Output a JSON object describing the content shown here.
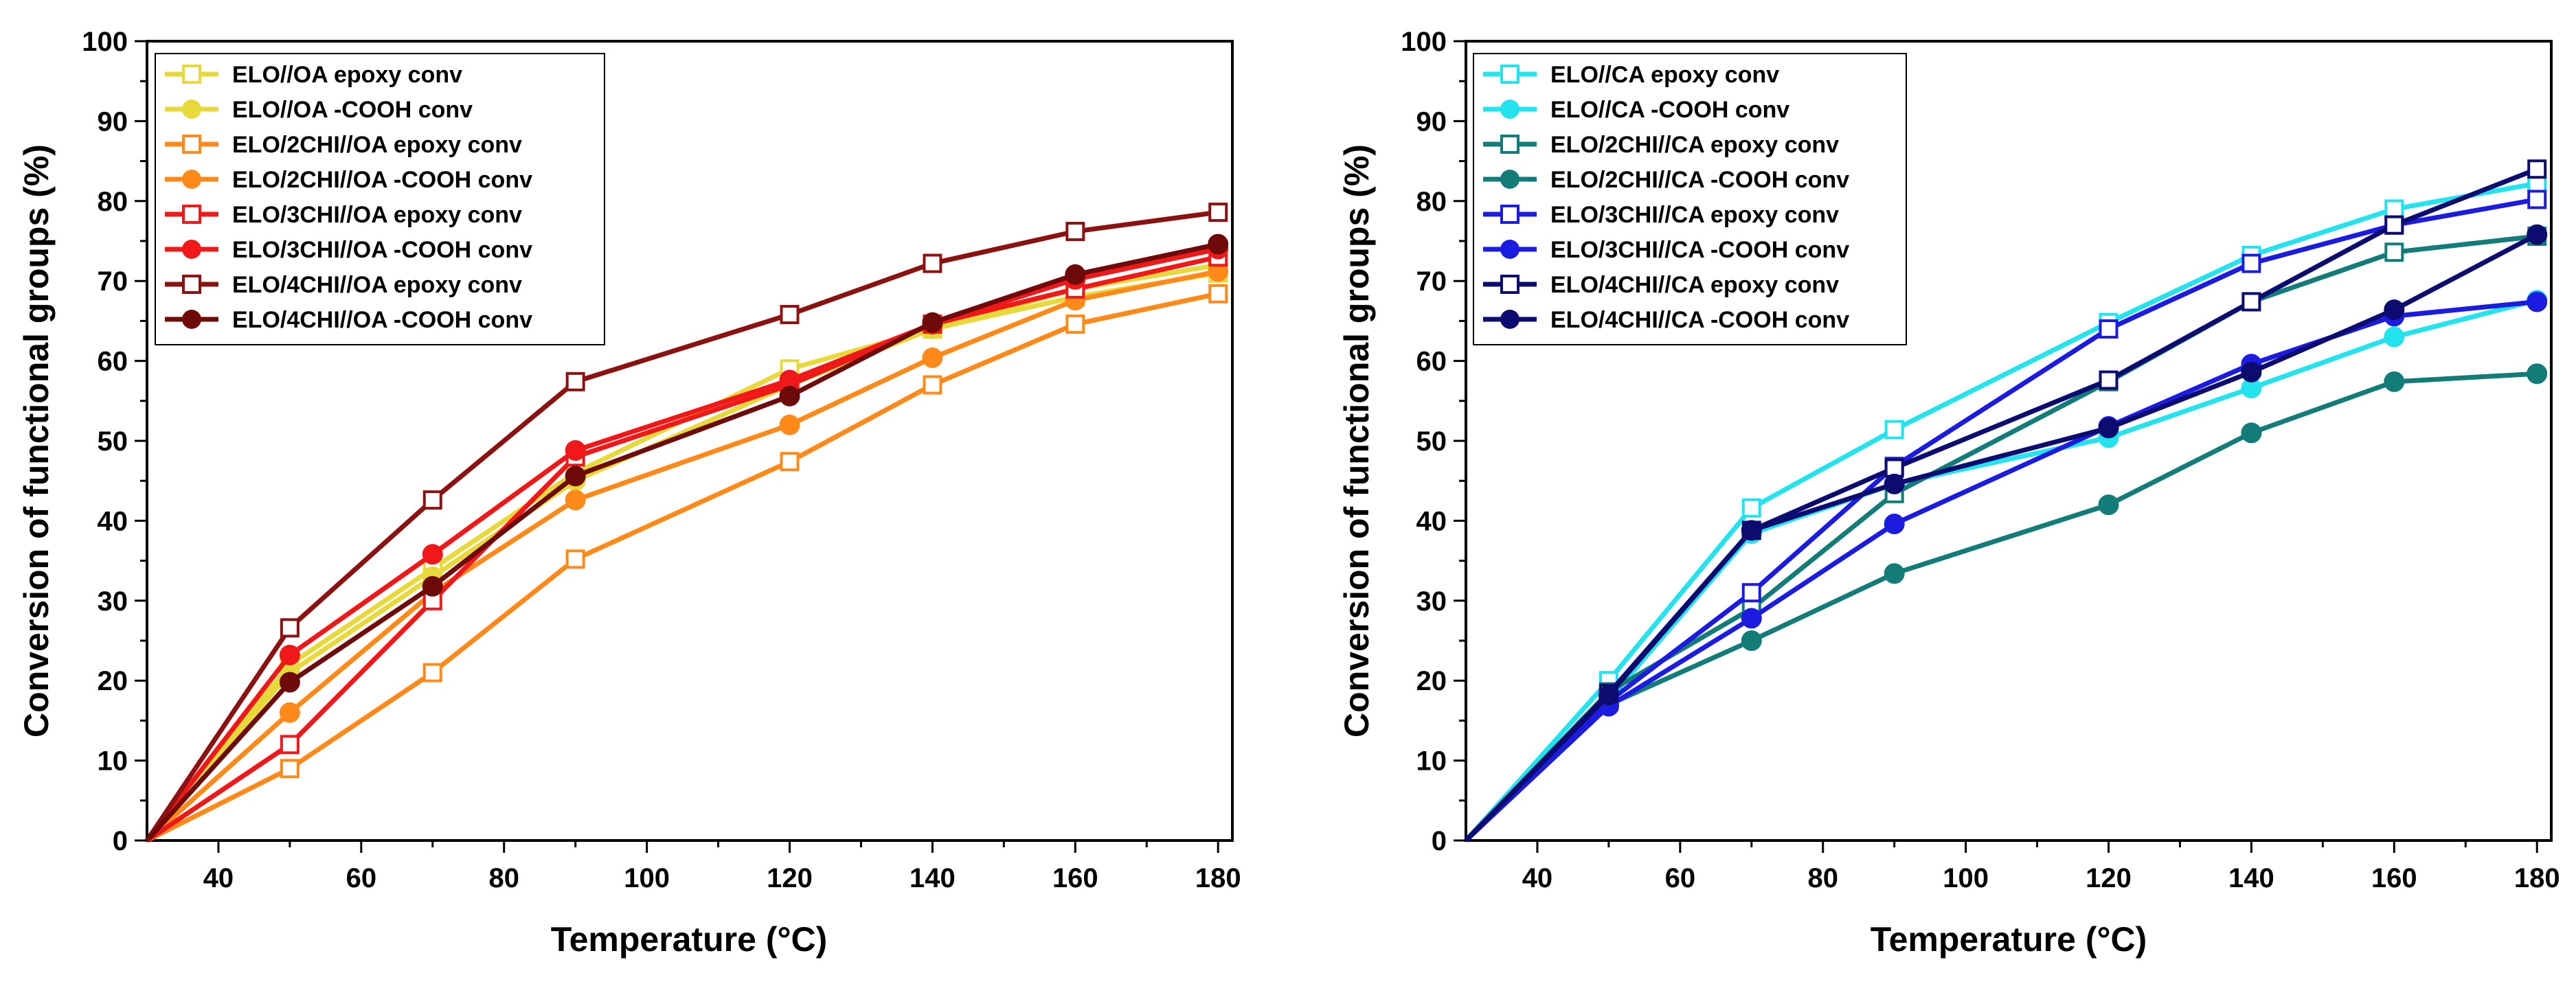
{
  "chart_data": [
    {
      "type": "line",
      "xlabel": "Temperature (°C)",
      "ylabel": "Conversion of functional groups (%)",
      "xlim": [
        30,
        182
      ],
      "ylim": [
        0,
        100
      ],
      "xticks": [
        40,
        60,
        80,
        100,
        120,
        140,
        160,
        180
      ],
      "yticks": [
        0,
        10,
        20,
        30,
        40,
        50,
        60,
        70,
        80,
        90,
        100
      ],
      "legend_position": "top-left",
      "x": [
        30,
        50,
        70,
        90,
        120,
        140,
        160,
        180
      ],
      "series": [
        {
          "name": "ELO//OA epoxy conv",
          "marker": "square-open",
          "color": "#e8d93a",
          "values": [
            0,
            22,
            34,
            46,
            59,
            64,
            68,
            71
          ]
        },
        {
          "name": "ELO//OA -COOH conv",
          "marker": "circle-filled",
          "color": "#e8d93a",
          "values": [
            0,
            21,
            33,
            45,
            57,
            64,
            69,
            72
          ]
        },
        {
          "name": "ELO/2CHI//OA epoxy conv",
          "marker": "square-open",
          "color": "#ff8a1a",
          "values": [
            0,
            9,
            21,
            35.2,
            47.4,
            57,
            64.6,
            68.4
          ]
        },
        {
          "name": "ELO/2CHI//OA -COOH conv",
          "marker": "circle-filled",
          "color": "#ff8a1a",
          "values": [
            0,
            16,
            31,
            42.6,
            52,
            60.4,
            67.6,
            71.2
          ]
        },
        {
          "name": "ELO/3CHI//OA epoxy conv",
          "marker": "square-open",
          "color": "#f01818",
          "values": [
            0,
            12,
            30,
            48,
            57,
            64.6,
            69,
            73
          ]
        },
        {
          "name": "ELO/3CHI//OA -COOH conv",
          "marker": "circle-filled",
          "color": "#f01818",
          "values": [
            0,
            23.2,
            35.8,
            48.8,
            57.6,
            64.6,
            70.2,
            74
          ]
        },
        {
          "name": "ELO/4CHI//OA epoxy conv",
          "marker": "square-open",
          "color": "#8c1212",
          "values": [
            0,
            26.6,
            42.6,
            57.4,
            65.8,
            72.2,
            76.2,
            78.6
          ]
        },
        {
          "name": "ELO/4CHI//OA -COOH conv",
          "marker": "circle-filled",
          "color": "#6e0a0a",
          "values": [
            0,
            19.8,
            31.8,
            45.6,
            55.6,
            64.8,
            70.8,
            74.6
          ]
        }
      ]
    },
    {
      "type": "line",
      "xlabel": "Temperature (°C)",
      "ylabel": "Conversion of functional groups (%)",
      "xlim": [
        30,
        182
      ],
      "ylim": [
        0,
        100
      ],
      "xticks": [
        40,
        60,
        80,
        100,
        120,
        140,
        160,
        180
      ],
      "yticks": [
        0,
        10,
        20,
        30,
        40,
        50,
        60,
        70,
        80,
        90,
        100
      ],
      "legend_position": "top-left",
      "x": [
        30,
        50,
        70,
        90,
        120,
        140,
        160,
        180
      ],
      "series": [
        {
          "name": "ELO//CA epoxy conv",
          "marker": "square-open",
          "color": "#22e3ee",
          "values": [
            0,
            20,
            41.6,
            51.4,
            64.8,
            73.2,
            79,
            82.2
          ]
        },
        {
          "name": "ELO//CA -COOH conv",
          "marker": "circle-filled",
          "color": "#22e3ee",
          "values": [
            0,
            17.6,
            38.4,
            44.6,
            50.4,
            56.6,
            63,
            67.6
          ]
        },
        {
          "name": "ELO/2CHI//CA epoxy conv",
          "marker": "square-open",
          "color": "#127c78",
          "values": [
            0,
            18.6,
            29,
            43.4,
            57.4,
            67.4,
            73.6,
            75.6
          ]
        },
        {
          "name": "ELO/2CHI//CA -COOH conv",
          "marker": "circle-filled",
          "color": "#127c78",
          "values": [
            0,
            17,
            25,
            33.4,
            42,
            51,
            57.4,
            58.4
          ]
        },
        {
          "name": "ELO/3CHI//CA epoxy conv",
          "marker": "square-open",
          "color": "#1c1ce0",
          "values": [
            0,
            17.4,
            31,
            46.8,
            64,
            72.2,
            77,
            80.2
          ]
        },
        {
          "name": "ELO/3CHI//CA -COOH conv",
          "marker": "circle-filled",
          "color": "#1c1ce0",
          "values": [
            0,
            16.8,
            27.8,
            39.6,
            51.8,
            59.6,
            65.6,
            67.4
          ]
        },
        {
          "name": "ELO/4CHI//CA epoxy conv",
          "marker": "square-open",
          "color": "#0b0b70",
          "values": [
            0,
            18.4,
            38.8,
            46.6,
            57.6,
            67.4,
            77,
            84
          ]
        },
        {
          "name": "ELO/4CHI//CA -COOH conv",
          "marker": "circle-filled",
          "color": "#0b0b70",
          "values": [
            0,
            18.2,
            38.8,
            44.6,
            51.6,
            58.6,
            66.4,
            75.8
          ]
        }
      ]
    }
  ]
}
